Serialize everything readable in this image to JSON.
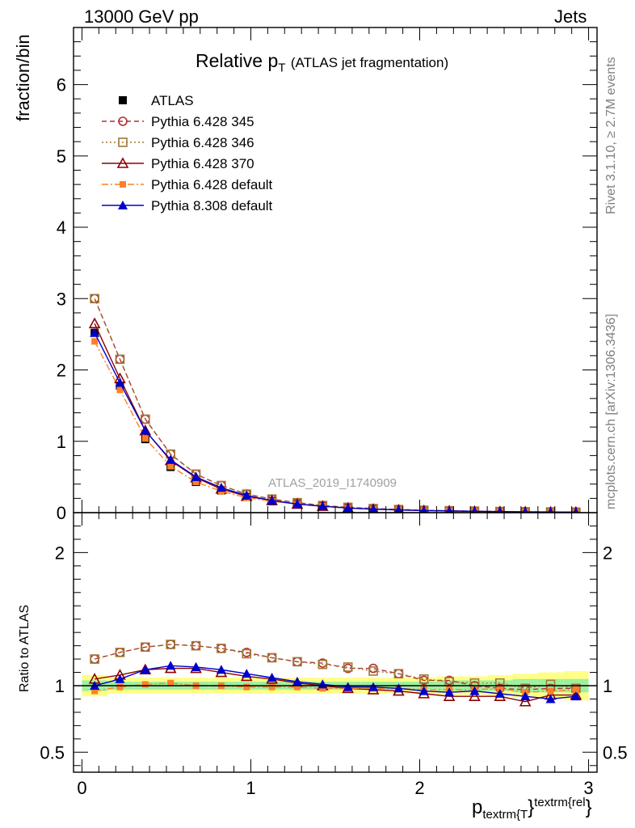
{
  "header": {
    "energy_label": "13000 GeV pp",
    "process_label": "Jets"
  },
  "side": {
    "rivet": "Rivet 3.1.10, ≥ 2.7M events",
    "mcplots": "mcplots.cern.ch [arXiv:1306.3436]"
  },
  "analysis_id": "ATLAS_2019_I1740909",
  "title": {
    "main": "Relative p",
    "sub": "T",
    "paren": "(ATLAS jet fragmentation)"
  },
  "axes": {
    "main_ylabel": "fraction/bin",
    "ratio_ylabel": "Ratio to ATLAS",
    "xlabel_p": "p",
    "xlabel_sub": "textrm{T",
    "xlabel_sup": "textrm{rel",
    "xlabel_close": "}"
  },
  "colors": {
    "atlas": "#000000",
    "p345": "#b03030",
    "p346": "#a07838",
    "p370": "#8b0000",
    "pdef": "#ff7f27",
    "p8": "#0000cc",
    "band_green": "#9ef09e",
    "band_yellow": "#ffff88"
  },
  "chart_data": [
    {
      "type": "line",
      "panel": "main",
      "ylabel": "fraction/bin",
      "ylim": [
        0,
        6.8
      ],
      "xlim": [
        -0.05,
        3.05
      ],
      "yticks": [
        0,
        1,
        2,
        3,
        4,
        5,
        6
      ],
      "x": [
        0.075,
        0.225,
        0.375,
        0.525,
        0.675,
        0.825,
        0.975,
        1.125,
        1.275,
        1.425,
        1.575,
        1.725,
        1.875,
        2.025,
        2.175,
        2.325,
        2.475,
        2.625,
        2.775,
        2.925
      ],
      "series": [
        {
          "name": "ATLAS",
          "style": "atlas",
          "values": [
            2.52,
            1.78,
            1.03,
            0.64,
            0.43,
            0.31,
            0.22,
            0.16,
            0.12,
            0.09,
            0.065,
            0.05,
            0.04,
            0.03,
            0.025,
            0.02,
            0.015,
            0.012,
            0.01,
            0.008
          ]
        },
        {
          "name": "Pythia 6.428 345",
          "style": "p345",
          "values": [
            3.0,
            2.15,
            1.31,
            0.82,
            0.54,
            0.38,
            0.26,
            0.19,
            0.14,
            0.1,
            0.075,
            0.058,
            0.045,
            0.033,
            0.027,
            0.021,
            0.016,
            0.012,
            0.01,
            0.008
          ]
        },
        {
          "name": "Pythia 6.428 346",
          "style": "p346",
          "values": [
            3.0,
            2.15,
            1.31,
            0.82,
            0.54,
            0.38,
            0.26,
            0.19,
            0.14,
            0.1,
            0.075,
            0.057,
            0.044,
            0.033,
            0.027,
            0.021,
            0.016,
            0.012,
            0.01,
            0.008
          ]
        },
        {
          "name": "Pythia 6.428 370",
          "style": "p370",
          "values": [
            2.65,
            1.88,
            1.15,
            0.73,
            0.49,
            0.33,
            0.23,
            0.17,
            0.12,
            0.09,
            0.064,
            0.048,
            0.038,
            0.028,
            0.023,
            0.018,
            0.014,
            0.011,
            0.009,
            0.007
          ]
        },
        {
          "name": "Pythia 6.428 default",
          "style": "pdef",
          "values": [
            2.4,
            1.72,
            1.04,
            0.65,
            0.43,
            0.3,
            0.21,
            0.16,
            0.12,
            0.09,
            0.064,
            0.049,
            0.039,
            0.029,
            0.024,
            0.019,
            0.015,
            0.011,
            0.009,
            0.008
          ]
        },
        {
          "name": "Pythia 8.308 default",
          "style": "p8",
          "values": [
            2.52,
            1.82,
            1.15,
            0.74,
            0.5,
            0.35,
            0.24,
            0.17,
            0.12,
            0.09,
            0.065,
            0.05,
            0.039,
            0.029,
            0.024,
            0.019,
            0.015,
            0.011,
            0.009,
            0.007
          ]
        }
      ]
    },
    {
      "type": "line",
      "panel": "ratio",
      "ylabel": "Ratio to ATLAS",
      "ylim": [
        0.35,
        2.3
      ],
      "xlim": [
        -0.05,
        3.05
      ],
      "yticks": [
        0.5,
        1,
        2
      ],
      "x": [
        0.075,
        0.225,
        0.375,
        0.525,
        0.675,
        0.825,
        0.975,
        1.125,
        1.275,
        1.425,
        1.575,
        1.725,
        1.875,
        2.025,
        2.175,
        2.325,
        2.475,
        2.625,
        2.775,
        2.925
      ],
      "band": {
        "stat": [
          0.04,
          0.03,
          0.03,
          0.03,
          0.03,
          0.03,
          0.03,
          0.03,
          0.03,
          0.03,
          0.03,
          0.03,
          0.03,
          0.03,
          0.04,
          0.04,
          0.04,
          0.05,
          0.05,
          0.05
        ],
        "total": [
          0.08,
          0.06,
          0.06,
          0.06,
          0.06,
          0.06,
          0.06,
          0.06,
          0.06,
          0.06,
          0.06,
          0.06,
          0.06,
          0.06,
          0.07,
          0.07,
          0.08,
          0.09,
          0.1,
          0.11
        ]
      },
      "series": [
        {
          "name": "Pythia 6.428 345",
          "style": "p345",
          "values": [
            1.2,
            1.25,
            1.29,
            1.31,
            1.3,
            1.28,
            1.25,
            1.21,
            1.18,
            1.17,
            1.13,
            1.13,
            1.09,
            1.04,
            1.04,
            1.0,
            0.98,
            0.97,
            0.98,
            0.98
          ]
        },
        {
          "name": "Pythia 6.428 346",
          "style": "p346",
          "values": [
            1.2,
            1.25,
            1.29,
            1.31,
            1.3,
            1.28,
            1.24,
            1.21,
            1.18,
            1.16,
            1.14,
            1.11,
            1.09,
            1.05,
            1.03,
            1.02,
            1.02,
            0.98,
            1.01,
            0.98
          ]
        },
        {
          "name": "Pythia 6.428 370",
          "style": "p370",
          "values": [
            1.05,
            1.08,
            1.12,
            1.13,
            1.13,
            1.1,
            1.07,
            1.05,
            1.02,
            1.0,
            0.98,
            0.97,
            0.96,
            0.94,
            0.92,
            0.92,
            0.92,
            0.88,
            0.93,
            0.93
          ]
        },
        {
          "name": "Pythia 6.428 default",
          "style": "pdef",
          "values": [
            0.96,
            0.99,
            1.01,
            1.02,
            1.0,
            1.0,
            0.99,
            0.99,
            0.99,
            0.98,
            0.98,
            0.98,
            0.98,
            0.97,
            0.97,
            0.97,
            0.98,
            0.95,
            0.96,
            0.97
          ]
        },
        {
          "name": "Pythia 8.308 default",
          "style": "p8",
          "values": [
            1.0,
            1.05,
            1.12,
            1.15,
            1.14,
            1.12,
            1.09,
            1.06,
            1.03,
            1.01,
            0.99,
            0.99,
            0.98,
            0.96,
            0.95,
            0.96,
            0.94,
            0.92,
            0.9,
            0.92
          ]
        }
      ]
    }
  ],
  "xaxis": {
    "ticks": [
      0,
      1,
      2,
      3
    ],
    "tick_labels": [
      "0",
      "1",
      "2",
      "3"
    ]
  }
}
